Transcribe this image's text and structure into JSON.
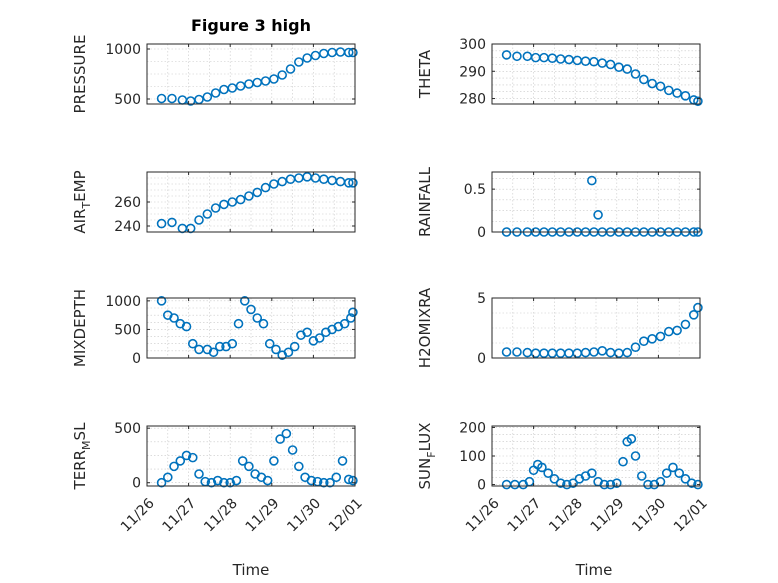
{
  "title": "Figure 3 high",
  "xlabel": "Time",
  "x_tick_labels": [
    "11/26",
    "11/27",
    "11/28",
    "11/29",
    "11/30",
    "12/01"
  ],
  "colors": {
    "marker": "#0072BD",
    "axis": "#262626",
    "grid": "#c8c8c8"
  },
  "chart_data": [
    {
      "type": "scatter",
      "ylabel": "PRESSURE",
      "ylim": [
        450,
        1050
      ],
      "yticks": [
        500,
        1000
      ],
      "xlim": [
        "2020-11-26",
        "2020-12-01"
      ],
      "grid": true,
      "x_days": [
        0.35,
        0.6,
        0.85,
        1.05,
        1.25,
        1.45,
        1.65,
        1.85,
        2.05,
        2.25,
        2.45,
        2.65,
        2.85,
        3.05,
        3.25,
        3.45,
        3.65,
        3.85,
        4.05,
        4.25,
        4.45,
        4.65,
        4.85,
        4.95
      ],
      "y": [
        505,
        505,
        490,
        480,
        495,
        520,
        560,
        595,
        610,
        630,
        650,
        665,
        680,
        700,
        740,
        800,
        870,
        910,
        935,
        955,
        965,
        970,
        965,
        965
      ]
    },
    {
      "type": "scatter",
      "ylabel": "THETA",
      "ylim": [
        278,
        300
      ],
      "yticks": [
        280,
        290,
        300
      ],
      "xlim": [
        "2020-11-26",
        "2020-12-01"
      ],
      "grid": true,
      "x_days": [
        0.35,
        0.6,
        0.85,
        1.05,
        1.25,
        1.45,
        1.65,
        1.85,
        2.05,
        2.25,
        2.45,
        2.65,
        2.85,
        3.05,
        3.25,
        3.45,
        3.65,
        3.85,
        4.05,
        4.25,
        4.45,
        4.65,
        4.85,
        4.95
      ],
      "y": [
        296,
        295.5,
        295.5,
        295,
        295,
        294.8,
        294.5,
        294.3,
        294,
        293.7,
        293.5,
        293,
        292.5,
        291.5,
        290.8,
        289,
        287,
        285.5,
        284.5,
        283,
        282,
        281,
        279.5,
        279
      ]
    },
    {
      "type": "scatter",
      "ylabel": "AIR_TEMP",
      "ylim": [
        235,
        285
      ],
      "yticks": [
        240,
        260
      ],
      "xlim": [
        "2020-11-26",
        "2020-12-01"
      ],
      "grid": true,
      "x_days": [
        0.35,
        0.6,
        0.85,
        1.05,
        1.25,
        1.45,
        1.65,
        1.85,
        2.05,
        2.25,
        2.45,
        2.65,
        2.85,
        3.05,
        3.25,
        3.45,
        3.65,
        3.85,
        4.05,
        4.25,
        4.45,
        4.65,
        4.85,
        4.95
      ],
      "y": [
        242,
        243,
        238,
        238,
        245,
        250,
        255,
        258,
        260,
        262,
        265,
        268,
        272,
        275,
        277,
        279,
        280,
        281,
        280,
        279,
        278,
        277,
        276,
        276
      ]
    },
    {
      "type": "scatter",
      "ylabel": "RAINFALL",
      "ylim": [
        0,
        0.7
      ],
      "yticks": [
        0,
        0.5
      ],
      "xlim": [
        "2020-11-26",
        "2020-12-01"
      ],
      "grid": true,
      "x_days": [
        0.35,
        0.6,
        0.85,
        1.05,
        1.25,
        1.45,
        1.65,
        1.85,
        2.05,
        2.25,
        2.45,
        2.55,
        2.65,
        2.85,
        3.05,
        3.25,
        3.45,
        3.65,
        3.85,
        4.05,
        4.25,
        4.45,
        4.65,
        4.85,
        4.95
      ],
      "y": [
        0,
        0,
        0,
        0,
        0,
        0,
        0,
        0,
        0,
        0,
        0,
        0.2,
        0,
        0,
        0,
        0,
        0,
        0,
        0,
        0,
        0,
        0,
        0,
        0,
        0
      ],
      "extra_points": [
        [
          2.4,
          0.6
        ]
      ]
    },
    {
      "type": "scatter",
      "ylabel": "MIXDEPTH",
      "ylim": [
        0,
        1050
      ],
      "yticks": [
        0,
        500,
        1000
      ],
      "xlim": [
        "2020-11-26",
        "2020-12-01"
      ],
      "grid": true,
      "x_days": [
        0.35,
        0.5,
        0.65,
        0.8,
        0.95,
        1.1,
        1.25,
        1.45,
        1.6,
        1.75,
        1.9,
        2.05,
        2.2,
        2.35,
        2.5,
        2.65,
        2.8,
        2.95,
        3.1,
        3.25,
        3.4,
        3.55,
        3.7,
        3.85,
        4.0,
        4.15,
        4.3,
        4.45,
        4.6,
        4.75,
        4.9,
        4.95
      ],
      "y": [
        1000,
        750,
        700,
        600,
        550,
        250,
        150,
        150,
        100,
        200,
        200,
        250,
        600,
        1000,
        850,
        700,
        600,
        250,
        150,
        50,
        100,
        200,
        400,
        450,
        300,
        350,
        450,
        500,
        550,
        600,
        700,
        800
      ]
    },
    {
      "type": "scatter",
      "ylabel": "H2OMIXRA",
      "ylim": [
        0,
        5
      ],
      "yticks": [
        0,
        5
      ],
      "xlim": [
        "2020-11-26",
        "2020-12-01"
      ],
      "grid": true,
      "x_days": [
        0.35,
        0.6,
        0.85,
        1.05,
        1.25,
        1.45,
        1.65,
        1.85,
        2.05,
        2.25,
        2.45,
        2.65,
        2.85,
        3.05,
        3.25,
        3.45,
        3.65,
        3.85,
        4.05,
        4.25,
        4.45,
        4.65,
        4.85,
        4.95
      ],
      "y": [
        0.5,
        0.5,
        0.45,
        0.4,
        0.4,
        0.4,
        0.4,
        0.4,
        0.4,
        0.45,
        0.5,
        0.6,
        0.45,
        0.4,
        0.45,
        0.9,
        1.4,
        1.6,
        1.8,
        2.2,
        2.3,
        2.8,
        3.6,
        4.2
      ]
    },
    {
      "type": "scatter",
      "ylabel": "TERR_MSL",
      "ylim": [
        -30,
        520
      ],
      "yticks": [
        0,
        500
      ],
      "xlim": [
        "2020-11-26",
        "2020-12-01"
      ],
      "grid": true,
      "x_days": [
        0.35,
        0.5,
        0.65,
        0.8,
        0.95,
        1.1,
        1.25,
        1.4,
        1.55,
        1.7,
        1.85,
        2.0,
        2.15,
        2.3,
        2.45,
        2.6,
        2.75,
        2.9,
        3.05,
        3.2,
        3.35,
        3.5,
        3.65,
        3.8,
        3.95,
        4.1,
        4.25,
        4.4,
        4.55,
        4.7,
        4.85,
        4.95
      ],
      "y": [
        0,
        50,
        150,
        200,
        250,
        230,
        80,
        10,
        0,
        20,
        0,
        0,
        20,
        200,
        150,
        80,
        50,
        20,
        200,
        400,
        450,
        300,
        150,
        50,
        20,
        10,
        0,
        0,
        50,
        200,
        30,
        20
      ]
    },
    {
      "type": "scatter",
      "ylabel": "SUN_FLUX",
      "ylim": [
        -5,
        205
      ],
      "yticks": [
        0,
        100,
        200
      ],
      "xlim": [
        "2020-11-26",
        "2020-12-01"
      ],
      "grid": true,
      "x_days": [
        0.35,
        0.55,
        0.75,
        0.9,
        1.0,
        1.1,
        1.2,
        1.35,
        1.5,
        1.65,
        1.8,
        1.95,
        2.1,
        2.25,
        2.4,
        2.55,
        2.7,
        2.85,
        3.0,
        3.15,
        3.25,
        3.35,
        3.45,
        3.6,
        3.75,
        3.9,
        4.05,
        4.2,
        4.35,
        4.5,
        4.65,
        4.8,
        4.95
      ],
      "y": [
        0,
        0,
        0,
        10,
        50,
        70,
        60,
        40,
        20,
        5,
        0,
        5,
        20,
        30,
        40,
        10,
        0,
        0,
        5,
        80,
        150,
        160,
        100,
        30,
        0,
        0,
        10,
        40,
        60,
        40,
        20,
        5,
        0
      ]
    }
  ]
}
